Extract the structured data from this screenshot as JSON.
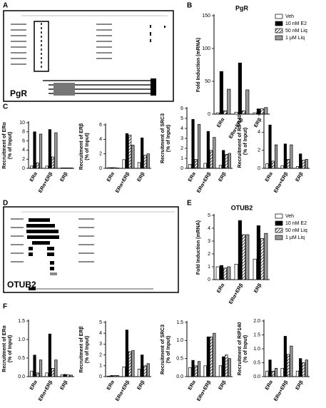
{
  "panel_labels": [
    "A",
    "B",
    "C",
    "D",
    "E",
    "F"
  ],
  "browser_panels": [
    {
      "label": "PgR"
    },
    {
      "label": "OTUB2"
    }
  ],
  "chart_data": [
    {
      "type": "bar",
      "title": "PgR",
      "ylabel": [
        "Fold Induction (mRNA)"
      ],
      "legend": "right",
      "categories": [
        "ERα",
        "ERα+ERβ",
        "ERβ"
      ],
      "ylim": [
        0,
        150
      ],
      "yticks": [
        0,
        50,
        100,
        150
      ],
      "series": [
        {
          "name": "Veh",
          "color": "#ffffff",
          "values": [
            2,
            3,
            2
          ]
        },
        {
          "name": "10 nM E2",
          "color": "#000000",
          "values": [
            65,
            78,
            8
          ]
        },
        {
          "name": "50 nM Liq",
          "color": "#ffffff",
          "pattern": "hatch",
          "values": [
            5,
            5,
            8
          ]
        },
        {
          "name": "1 μM Liq",
          "color": "#999999",
          "values": [
            38,
            37,
            10
          ]
        }
      ]
    },
    {
      "type": "bar",
      "ylabel": [
        "Recruitment of ERα",
        "(% of Input)"
      ],
      "categories": [
        "ERα",
        "ERα+ERβ",
        "ERβ"
      ],
      "ylim": [
        0,
        10
      ],
      "yticks": [
        0,
        2,
        4,
        6,
        8,
        10
      ],
      "series": [
        {
          "color": "#ffffff",
          "values": [
            0.5,
            0.5,
            0.1
          ]
        },
        {
          "color": "#000000",
          "values": [
            8,
            8.5,
            0.1
          ]
        },
        {
          "color": "#ffffff",
          "pattern": "hatch",
          "values": [
            1.2,
            2.5,
            0.1
          ]
        },
        {
          "color": "#999999",
          "values": [
            7.5,
            7.8,
            0.1
          ]
        }
      ]
    },
    {
      "type": "bar",
      "ylabel": [
        "Recruitment of ERβ",
        "(% of Input)"
      ],
      "categories": [
        "ERα",
        "ERα+ERβ",
        "ERβ"
      ],
      "ylim": [
        0,
        6
      ],
      "yticks": [
        0,
        2,
        4,
        6
      ],
      "series": [
        {
          "color": "#ffffff",
          "values": [
            0.1,
            1.2,
            0.8
          ]
        },
        {
          "color": "#000000",
          "values": [
            0.1,
            4.8,
            4.2
          ]
        },
        {
          "color": "#ffffff",
          "pattern": "hatch",
          "values": [
            0.1,
            4.6,
            1.8
          ]
        },
        {
          "color": "#999999",
          "values": [
            0.05,
            3.2,
            2.0
          ]
        }
      ]
    },
    {
      "type": "bar",
      "ylabel": [
        "Recruitment of SRC3",
        "(% of Input)"
      ],
      "categories": [
        "ERα",
        "ERα+ERβ",
        "ERβ"
      ],
      "ylim": [
        0,
        6
      ],
      "yticks": [
        0,
        1,
        2,
        3,
        4,
        5,
        6
      ],
      "series": [
        {
          "color": "#ffffff",
          "values": [
            0.4,
            0.5,
            0.3
          ]
        },
        {
          "color": "#000000",
          "values": [
            4.9,
            3.7,
            1.8
          ]
        },
        {
          "color": "#ffffff",
          "pattern": "hatch",
          "values": [
            0.9,
            1.8,
            1.4
          ]
        },
        {
          "color": "#999999",
          "values": [
            4.4,
            3.1,
            1.5
          ]
        }
      ]
    },
    {
      "type": "bar",
      "ylabel": [
        "Recruitment of RIP140",
        "(% of Input)"
      ],
      "categories": [
        "ERα",
        "ERα+ERβ",
        "ERβ"
      ],
      "ylim": [
        0,
        6
      ],
      "yticks": [
        0,
        2,
        4,
        6
      ],
      "series": [
        {
          "color": "#ffffff",
          "values": [
            0.5,
            0.3,
            0.2
          ]
        },
        {
          "color": "#000000",
          "values": [
            4.8,
            2.7,
            1.6
          ]
        },
        {
          "color": "#ffffff",
          "pattern": "hatch",
          "values": [
            0.8,
            1.0,
            0.9
          ]
        },
        {
          "color": "#999999",
          "values": [
            2.6,
            2.6,
            1.0
          ]
        }
      ]
    },
    {
      "type": "bar",
      "title": "OTUB2",
      "ylabel": [
        "Fold Induction (mRNA)"
      ],
      "legend": "right",
      "categories": [
        "ERα",
        "ERα+ERβ",
        "ERβ"
      ],
      "ylim": [
        0,
        5
      ],
      "yticks": [
        0,
        1,
        2,
        3,
        4,
        5
      ],
      "series": [
        {
          "name": "Veh",
          "color": "#ffffff",
          "values": [
            1.0,
            1.2,
            1.6
          ]
        },
        {
          "name": "10 nM E2",
          "color": "#000000",
          "values": [
            1.1,
            4.6,
            4.2
          ]
        },
        {
          "name": "50 nM Liq",
          "color": "#ffffff",
          "pattern": "hatch",
          "values": [
            0.9,
            3.5,
            3.2
          ]
        },
        {
          "name": "1 μM Liq",
          "color": "#999999",
          "values": [
            1.0,
            3.5,
            3.6
          ]
        }
      ]
    },
    {
      "type": "bar",
      "ylabel": [
        "Recruitment of ERα",
        "(% of Input)"
      ],
      "categories": [
        "ERα",
        "ERα+ERβ",
        "ERβ"
      ],
      "ylim": [
        0,
        1.5
      ],
      "yticks": [
        {
          "value": 0,
          "label": "0.0"
        },
        {
          "value": 0.5,
          "label": "0.5"
        },
        {
          "value": 1,
          "label": "1.0"
        },
        {
          "value": 1.5,
          "label": "1.5"
        }
      ],
      "series": [
        {
          "color": "#ffffff",
          "values": [
            0.15,
            0.1,
            0.05
          ]
        },
        {
          "color": "#000000",
          "values": [
            0.58,
            1.15,
            0.06
          ]
        },
        {
          "color": "#ffffff",
          "pattern": "hatch",
          "values": [
            0.1,
            0.22,
            0.05
          ]
        },
        {
          "color": "#999999",
          "values": [
            0.45,
            0.45,
            0.04
          ]
        }
      ]
    },
    {
      "type": "bar",
      "ylabel": [
        "Recruitment of ERβ",
        "(% of Input)"
      ],
      "categories": [
        "ERα",
        "ERα+ERβ",
        "ERβ"
      ],
      "ylim": [
        0,
        5
      ],
      "yticks": [
        0,
        1,
        2,
        3,
        4,
        5
      ],
      "series": [
        {
          "color": "#ffffff",
          "values": [
            0.05,
            0.9,
            0.7
          ]
        },
        {
          "color": "#000000",
          "values": [
            0.1,
            4.3,
            2.0
          ]
        },
        {
          "color": "#ffffff",
          "pattern": "hatch",
          "values": [
            0.1,
            2.3,
            1.0
          ]
        },
        {
          "color": "#999999",
          "values": [
            0.1,
            2.4,
            1.2
          ]
        }
      ]
    },
    {
      "type": "bar",
      "ylabel": [
        "Recruitment of SRC3",
        "(% of Input)"
      ],
      "categories": [
        "ERα",
        "ERα+ERβ",
        "ERβ"
      ],
      "ylim": [
        0,
        1.5
      ],
      "yticks": [
        {
          "value": 0,
          "label": "0.0"
        },
        {
          "value": 0.5,
          "label": "0.5"
        },
        {
          "value": 1,
          "label": "1.0"
        },
        {
          "value": 1.5,
          "label": "1.5"
        }
      ],
      "series": [
        {
          "color": "#ffffff",
          "values": [
            0.25,
            0.3,
            0.3
          ]
        },
        {
          "color": "#000000",
          "values": [
            0.45,
            1.1,
            0.55
          ]
        },
        {
          "color": "#ffffff",
          "pattern": "hatch",
          "values": [
            0.3,
            1.1,
            0.6
          ]
        },
        {
          "color": "#999999",
          "values": [
            0.42,
            1.2,
            0.5
          ]
        }
      ]
    },
    {
      "type": "bar",
      "ylabel": [
        "Recruitment of RIP140",
        "(% of Input)"
      ],
      "categories": [
        "ERα",
        "ERα+ERβ",
        "ERβ"
      ],
      "ylim": [
        0,
        2
      ],
      "yticks": [
        {
          "value": 0,
          "label": "0.0"
        },
        {
          "value": 0.5,
          "label": "0.5"
        },
        {
          "value": 1,
          "label": "1.0"
        },
        {
          "value": 1.5,
          "label": "1.5"
        },
        {
          "value": 2,
          "label": "2.0"
        }
      ],
      "series": [
        {
          "color": "#ffffff",
          "values": [
            0.2,
            0.3,
            0.2
          ]
        },
        {
          "color": "#000000",
          "values": [
            0.6,
            1.45,
            0.65
          ]
        },
        {
          "color": "#ffffff",
          "pattern": "hatch",
          "values": [
            0.2,
            0.8,
            0.5
          ]
        },
        {
          "color": "#999999",
          "values": [
            0.3,
            1.1,
            0.6
          ]
        }
      ]
    }
  ]
}
